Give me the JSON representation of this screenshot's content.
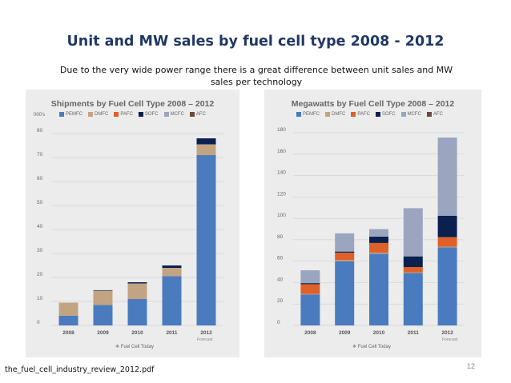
{
  "slide": {
    "title": "Unit and MW sales by fuel cell type 2008 - 2012",
    "subtitle": "Due to the very wide power range there is a great difference between unit sales and MW sales per technology",
    "footnote": "the_fuel_cell_industry_review_2012.pdf",
    "page_number": "12"
  },
  "colors": {
    "PEMFC": "#4a7bbf",
    "DMFC": "#c2a483",
    "PAFC": "#df6127",
    "SOFC": "#0a2150",
    "MCFC": "#9aa6c0",
    "AFC": "#6b4b3b"
  },
  "chart_data": [
    {
      "type": "bar",
      "stacked": true,
      "title": "Shipments by Fuel Cell Type 2008 – 2012",
      "unit_label": "000's",
      "source": "Fuel Cell Today",
      "forecast_label": "Forecast",
      "categories": [
        "2008",
        "2009",
        "2010",
        "2011",
        "2012"
      ],
      "legend": [
        "PEMFC",
        "DMFC",
        "PAFC",
        "SOFC",
        "MCFC",
        "AFC"
      ],
      "ylim": [
        0,
        80
      ],
      "yticks": [
        0,
        10,
        20,
        30,
        40,
        50,
        60,
        70,
        80
      ],
      "series": [
        {
          "name": "PEMFC",
          "values": [
            4,
            8.5,
            11,
            20.5,
            71
          ]
        },
        {
          "name": "DMFC",
          "values": [
            5.5,
            6,
            6.5,
            3.5,
            4.5
          ]
        },
        {
          "name": "PAFC",
          "values": [
            0,
            0,
            0,
            0,
            0
          ]
        },
        {
          "name": "SOFC",
          "values": [
            0,
            0.2,
            0.5,
            1,
            2.5
          ]
        },
        {
          "name": "MCFC",
          "values": [
            0,
            0,
            0,
            0,
            0
          ]
        },
        {
          "name": "AFC",
          "values": [
            0,
            0,
            0,
            0,
            0
          ]
        }
      ]
    },
    {
      "type": "bar",
      "stacked": true,
      "title": "Megawatts by Fuel Cell Type 2008 – 2012",
      "source": "Fuel Cell Today",
      "forecast_label": "Forecast",
      "categories": [
        "2008",
        "2009",
        "2010",
        "2011",
        "2012"
      ],
      "legend": [
        "PEMFC",
        "DMFC",
        "PAFC",
        "SOFC",
        "MCFC",
        "AFC"
      ],
      "ylim": [
        0,
        180
      ],
      "yticks": [
        0,
        20,
        40,
        60,
        80,
        100,
        120,
        140,
        160,
        180
      ],
      "series": [
        {
          "name": "PEMFC",
          "values": [
            29,
            60,
            67,
            49,
            73
          ]
        },
        {
          "name": "DMFC",
          "values": [
            0.5,
            1,
            1,
            0.5,
            0.5
          ]
        },
        {
          "name": "PAFC",
          "values": [
            9,
            7,
            9,
            5,
            9
          ]
        },
        {
          "name": "SOFC",
          "values": [
            1,
            1,
            6,
            10,
            20
          ]
        },
        {
          "name": "MCFC",
          "values": [
            12,
            17,
            7,
            45,
            73
          ]
        },
        {
          "name": "AFC",
          "values": [
            0,
            0,
            0,
            0,
            0
          ]
        }
      ]
    }
  ]
}
